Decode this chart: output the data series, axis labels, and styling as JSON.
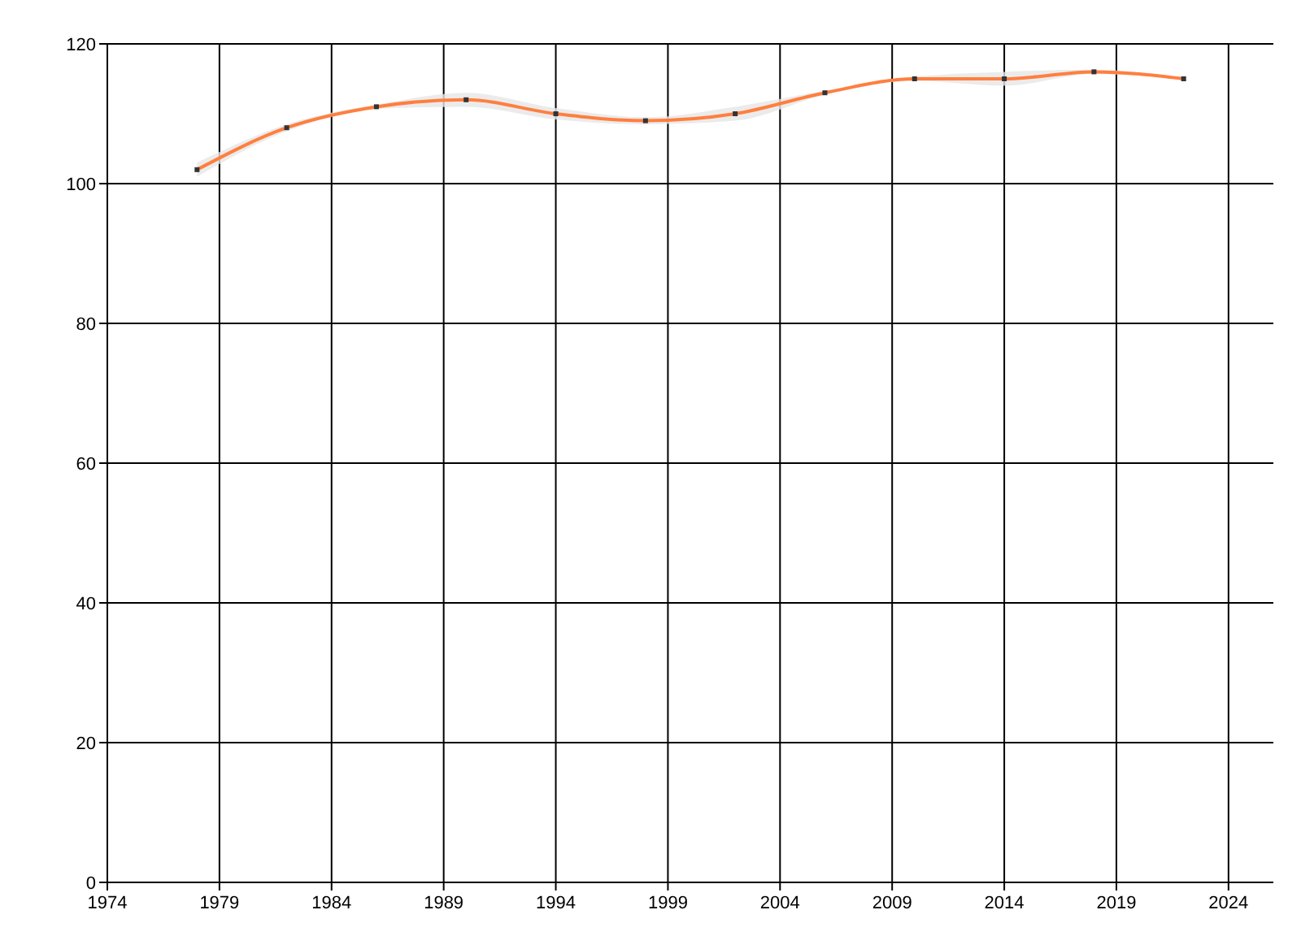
{
  "chart_data": {
    "type": "line",
    "x": [
      1978,
      1982,
      1986,
      1990,
      1994,
      1998,
      2002,
      2006,
      2010,
      2014,
      2018,
      2022
    ],
    "series": [
      {
        "color": "#ff7f3f",
        "values": [
          102,
          108,
          111,
          112,
          110,
          109,
          110,
          113,
          115,
          115,
          116,
          115
        ],
        "lower": [
          101,
          107.5,
          110.7,
          111,
          109.2,
          108.5,
          109,
          112.7,
          114.7,
          114,
          115.7,
          115
        ],
        "upper": [
          103,
          108.5,
          111.3,
          113,
          110.8,
          109.5,
          111,
          113.3,
          115.3,
          116,
          116.3,
          115
        ]
      }
    ],
    "xlim": [
      1974,
      2026
    ],
    "xticks": [
      1974,
      1979,
      1984,
      1989,
      1994,
      1999,
      2004,
      2009,
      2014,
      2019,
      2024
    ],
    "ylim": [
      0,
      120
    ],
    "yticks": [
      0,
      20,
      40,
      60,
      80,
      100,
      120
    ],
    "grid": true,
    "marker": "square",
    "line_style": "solid"
  }
}
